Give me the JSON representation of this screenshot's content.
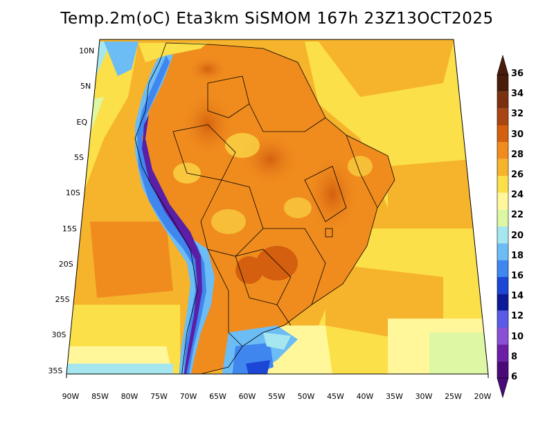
{
  "title": "Temp.2m(oC) Eta3km SiSMOM 167h 23Z13OCT2025",
  "lat_labels": [
    "10N",
    "5N",
    "EQ",
    "5S",
    "10S",
    "15S",
    "20S",
    "25S",
    "30S",
    "35S"
  ],
  "lon_labels": [
    "90W",
    "85W",
    "80W",
    "75W",
    "70W",
    "65W",
    "60W",
    "55W",
    "50W",
    "45W",
    "40W",
    "35W",
    "30W",
    "25W",
    "20W"
  ],
  "colorbar": {
    "labels": [
      "36",
      "34",
      "32",
      "30",
      "28",
      "26",
      "24",
      "22",
      "20",
      "18",
      "16",
      "14",
      "12",
      "10",
      "8",
      "6"
    ],
    "colors": [
      "#4a1c0c",
      "#7b3010",
      "#a84512",
      "#d4600f",
      "#f08c1e",
      "#f6b42c",
      "#fbe04a",
      "#fff79a",
      "#ddf7a4",
      "#a6e7ef",
      "#6cbcf5",
      "#3f86ef",
      "#1c46d4",
      "#0b1a96",
      "#5a5ae6",
      "#8a4fd4",
      "#6a1fa6",
      "#4a0b78"
    ],
    "top_arrow_color": "#4a1c0c",
    "bottom_arrow_color": "#4a0b78"
  }
}
